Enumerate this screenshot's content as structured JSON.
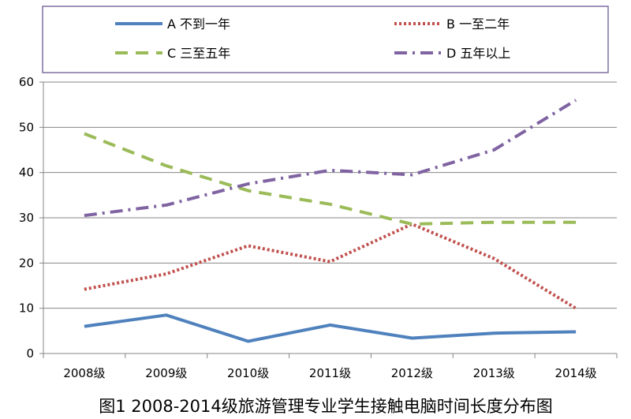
{
  "chart_data": {
    "type": "line",
    "title": "图1 2008-2014级旅游管理专业学生接触电脑时间长度分布图",
    "categories": [
      "2008级",
      "2009级",
      "2010级",
      "2011级",
      "2012级",
      "2013级",
      "2014级"
    ],
    "ylim": [
      0,
      60
    ],
    "yticks": [
      0,
      10,
      20,
      30,
      40,
      50,
      60
    ],
    "grid": true,
    "legend_position": "top",
    "series": [
      {
        "name": "A 不到一年",
        "values": [
          6,
          8.5,
          2.7,
          6.3,
          3.4,
          4.5,
          4.8
        ],
        "color": "#4F81BD",
        "style": "solid"
      },
      {
        "name": "B 一至二年",
        "values": [
          14.2,
          17.6,
          23.8,
          20.3,
          28.6,
          21,
          10
        ],
        "color": "#C0504D",
        "style": "dotted"
      },
      {
        "name": "C 三至五年",
        "values": [
          48.6,
          41.5,
          36,
          33,
          28.6,
          29,
          29
        ],
        "color": "#9BBB59",
        "style": "dashed"
      },
      {
        "name": "D 五年以上",
        "values": [
          30.5,
          32.8,
          37.5,
          40.5,
          39.5,
          45,
          56
        ],
        "color": "#8064A2",
        "style": "dashdot"
      }
    ]
  }
}
